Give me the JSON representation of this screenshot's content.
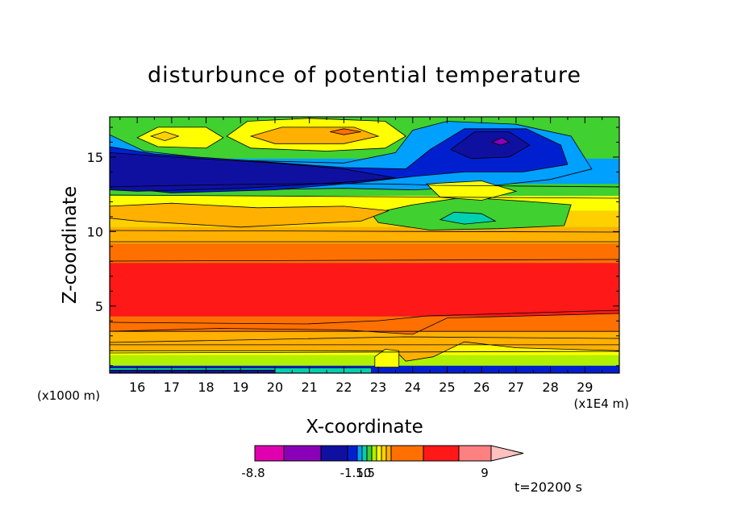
{
  "chart_data": {
    "type": "heatmap",
    "title": "disturbunce of potential temperature",
    "xlabel": "X-coordinate",
    "ylabel": "Z-coordinate",
    "x_unit_left": "(x1000 m)",
    "x_unit_right": "(x1E4 m)",
    "xlim": [
      15.2,
      30
    ],
    "ylim": [
      0.5,
      17.7
    ],
    "xticks": [
      "16",
      "17",
      "18",
      "19",
      "20",
      "21",
      "22",
      "23",
      "24",
      "25",
      "26",
      "27",
      "28",
      "29"
    ],
    "xtick_values": [
      16,
      17,
      18,
      19,
      20,
      21,
      22,
      23,
      24,
      25,
      26,
      27,
      28,
      29
    ],
    "yticks": [
      "5",
      "10",
      "15"
    ],
    "ytick_values": [
      5,
      10,
      15
    ],
    "time_label": "t=20200 s",
    "colorbar": {
      "colors": [
        "#e000b0",
        "#8a00b8",
        "#1010a0",
        "#0020d0",
        "#00a0ff",
        "#00d0b0",
        "#40d030",
        "#b0f000",
        "#ffff00",
        "#ffd000",
        "#ffb000",
        "#ff7000",
        "#ff1818",
        "#ff8080",
        "#ffc0c0"
      ],
      "labels": [
        "-8.8",
        "-1.50",
        "1.5",
        "9"
      ]
    },
    "layers": [
      {
        "kind": "band",
        "y0": 0.5,
        "y1": 1.0,
        "color": "#0020d0"
      },
      {
        "kind": "band",
        "y0": 1.0,
        "y1": 1.7,
        "color": "#b0f000"
      },
      {
        "kind": "band",
        "y0": 1.7,
        "y1": 2.4,
        "color": "#ffff00"
      },
      {
        "kind": "band",
        "y0": 2.4,
        "y1": 3.3,
        "color": "#ffb000"
      },
      {
        "kind": "band",
        "y0": 3.3,
        "y1": 4.3,
        "color": "#ff7000"
      },
      {
        "kind": "band",
        "y0": 4.3,
        "y1": 7.9,
        "color": "#ff1818"
      },
      {
        "kind": "band",
        "y0": 7.9,
        "y1": 9.2,
        "color": "#ff7000"
      },
      {
        "kind": "band",
        "y0": 9.2,
        "y1": 10.3,
        "color": "#ffb000"
      },
      {
        "kind": "band",
        "y0": 10.3,
        "y1": 11.4,
        "color": "#ffd000"
      },
      {
        "kind": "band",
        "y0": 11.4,
        "y1": 12.4,
        "color": "#ffff00"
      },
      {
        "kind": "band",
        "y0": 12.4,
        "y1": 13.2,
        "color": "#40d030"
      },
      {
        "kind": "band",
        "y0": 13.2,
        "y1": 14.9,
        "color": "#00a0ff"
      },
      {
        "kind": "band",
        "y0": 14.9,
        "y1": 16.6,
        "color": "#40d030"
      },
      {
        "kind": "band",
        "y0": 16.6,
        "y1": 17.7,
        "color": "#40d030"
      },
      {
        "kind": "poly",
        "color": "#ff7000",
        "pts": [
          [
            18.4,
            3.5
          ],
          [
            22,
            3.4
          ],
          [
            24,
            3.1
          ],
          [
            25,
            4.2
          ],
          [
            30,
            4.5
          ],
          [
            30,
            3.3
          ],
          [
            15.2,
            3.3
          ]
        ]
      },
      {
        "kind": "poly",
        "color": "#ffb000",
        "pts": [
          [
            15.2,
            2.4
          ],
          [
            30,
            2.4
          ],
          [
            30,
            2.0
          ],
          [
            27,
            2.2
          ],
          [
            25.5,
            2.6
          ],
          [
            24.6,
            1.6
          ],
          [
            23.8,
            1.3
          ],
          [
            23.5,
            2.0
          ],
          [
            15.2,
            2.0
          ]
        ]
      },
      {
        "kind": "poly",
        "color": "#ffff00",
        "pts": [
          [
            22.9,
            0.9
          ],
          [
            23.6,
            0.9
          ],
          [
            23.6,
            2.0
          ],
          [
            23.2,
            2.1
          ],
          [
            22.9,
            1.6
          ]
        ]
      },
      {
        "kind": "poly",
        "color": "#00d0b0",
        "pts": [
          [
            15.2,
            0.5
          ],
          [
            22.8,
            0.5
          ],
          [
            22.8,
            0.85
          ],
          [
            15.2,
            0.85
          ]
        ]
      },
      {
        "kind": "poly",
        "color": "#1010a0",
        "pts": [
          [
            15.2,
            0.5
          ],
          [
            20,
            0.5
          ],
          [
            20,
            0.7
          ],
          [
            15.2,
            0.7
          ]
        ]
      },
      {
        "kind": "poly",
        "color": "#00a0ff",
        "pts": [
          [
            15.2,
            16.5
          ],
          [
            16.2,
            15.4
          ],
          [
            18.5,
            14.8
          ],
          [
            22,
            14.6
          ],
          [
            23.5,
            15.3
          ],
          [
            24,
            16.8
          ],
          [
            25,
            17.4
          ],
          [
            27,
            17.2
          ],
          [
            28.6,
            16.4
          ],
          [
            29.2,
            14.2
          ],
          [
            28,
            13.5
          ],
          [
            26,
            13.0
          ],
          [
            24,
            12.8
          ],
          [
            22,
            12.9
          ],
          [
            19,
            12.8
          ],
          [
            16,
            13.3
          ],
          [
            15.2,
            13.4
          ]
        ]
      },
      {
        "kind": "poly",
        "color": "#0020d0",
        "pts": [
          [
            15.2,
            15.7
          ],
          [
            16.5,
            15.2
          ],
          [
            19,
            14.8
          ],
          [
            22,
            14.3
          ],
          [
            23.8,
            14.2
          ],
          [
            24.5,
            15.5
          ],
          [
            25.5,
            16.9
          ],
          [
            27.3,
            16.9
          ],
          [
            28.3,
            15.8
          ],
          [
            28.5,
            14.5
          ],
          [
            27.2,
            14.0
          ],
          [
            25.5,
            14.0
          ],
          [
            24,
            13.7
          ],
          [
            22.5,
            13.3
          ],
          [
            20,
            12.8
          ],
          [
            17,
            12.6
          ],
          [
            15.2,
            13.0
          ]
        ]
      },
      {
        "kind": "poly",
        "color": "#1010a0",
        "pts": [
          [
            15.2,
            15.3
          ],
          [
            17,
            15.0
          ],
          [
            20,
            14.6
          ],
          [
            22,
            14.2
          ],
          [
            23.5,
            13.6
          ],
          [
            22,
            13.3
          ],
          [
            19,
            12.9
          ],
          [
            16,
            12.7
          ],
          [
            15.2,
            12.8
          ]
        ]
      },
      {
        "kind": "poly",
        "color": "#1010a0",
        "pts": [
          [
            25.1,
            15.5
          ],
          [
            25.8,
            16.7
          ],
          [
            26.8,
            16.7
          ],
          [
            27.4,
            15.8
          ],
          [
            26.8,
            15.0
          ],
          [
            25.7,
            14.9
          ]
        ]
      },
      {
        "kind": "poly",
        "color": "#8a00b8",
        "pts": [
          [
            26.3,
            16.0
          ],
          [
            26.6,
            16.3
          ],
          [
            26.8,
            16.0
          ],
          [
            26.55,
            15.8
          ]
        ]
      },
      {
        "kind": "poly",
        "color": "#ffff00",
        "pts": [
          [
            16.0,
            16.3
          ],
          [
            16.6,
            15.7
          ],
          [
            18.0,
            15.6
          ],
          [
            18.5,
            16.3
          ],
          [
            18.0,
            17.0
          ],
          [
            16.6,
            17.0
          ]
        ]
      },
      {
        "kind": "poly",
        "color": "#ffd000",
        "pts": [
          [
            16.4,
            16.4
          ],
          [
            16.8,
            16.1
          ],
          [
            17.2,
            16.4
          ],
          [
            16.8,
            16.7
          ]
        ]
      },
      {
        "kind": "poly",
        "color": "#ffff00",
        "pts": [
          [
            18.6,
            16.4
          ],
          [
            19.3,
            15.6
          ],
          [
            21.5,
            15.4
          ],
          [
            23.2,
            15.6
          ],
          [
            23.8,
            16.4
          ],
          [
            23.2,
            17.4
          ],
          [
            21,
            17.6
          ],
          [
            19.2,
            17.4
          ]
        ]
      },
      {
        "kind": "poly",
        "color": "#ffb000",
        "pts": [
          [
            19.3,
            16.4
          ],
          [
            20,
            15.9
          ],
          [
            22,
            15.9
          ],
          [
            23,
            16.4
          ],
          [
            22.3,
            17.0
          ],
          [
            20.2,
            17.0
          ]
        ]
      },
      {
        "kind": "poly",
        "color": "#ff7000",
        "pts": [
          [
            21.6,
            16.7
          ],
          [
            22,
            16.5
          ],
          [
            22.5,
            16.7
          ],
          [
            22,
            16.9
          ]
        ]
      },
      {
        "kind": "poly",
        "color": "#40d030",
        "pts": [
          [
            22.8,
            11.2
          ],
          [
            24,
            11.8
          ],
          [
            25.5,
            12.3
          ],
          [
            27.5,
            12.0
          ],
          [
            28.6,
            11.8
          ],
          [
            28.4,
            10.4
          ],
          [
            26.5,
            10.2
          ],
          [
            24.5,
            10.1
          ],
          [
            23,
            10.6
          ]
        ]
      },
      {
        "kind": "poly",
        "color": "#ffff00",
        "pts": [
          [
            24.4,
            13.2
          ],
          [
            26,
            13.4
          ],
          [
            27,
            12.7
          ],
          [
            26,
            12.1
          ],
          [
            24.8,
            12.3
          ]
        ]
      },
      {
        "kind": "poly",
        "color": "#00d0b0",
        "pts": [
          [
            24.8,
            10.8
          ],
          [
            25.5,
            10.5
          ],
          [
            26.4,
            10.7
          ],
          [
            26,
            11.2
          ],
          [
            25.2,
            11.3
          ]
        ]
      },
      {
        "kind": "poly",
        "color": "#ffb000",
        "pts": [
          [
            15.2,
            11.7
          ],
          [
            17,
            11.9
          ],
          [
            19.5,
            11.6
          ],
          [
            22,
            11.7
          ],
          [
            23.3,
            11.4
          ],
          [
            22.5,
            10.7
          ],
          [
            19,
            10.3
          ],
          [
            16,
            10.7
          ],
          [
            15.2,
            10.9
          ]
        ]
      }
    ]
  }
}
